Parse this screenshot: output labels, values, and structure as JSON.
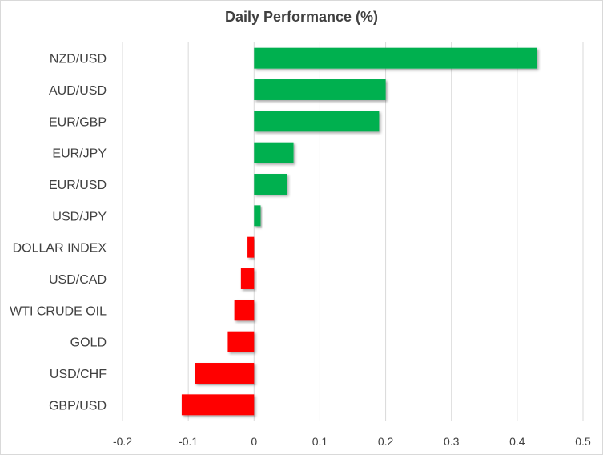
{
  "chart_data": {
    "type": "bar",
    "orientation": "horizontal",
    "title": "Daily Performance (%)",
    "xlabel": "",
    "ylabel": "",
    "categories": [
      "NZD/USD",
      "AUD/USD",
      "EUR/GBP",
      "EUR/JPY",
      "EUR/USD",
      "USD/JPY",
      "DOLLAR INDEX",
      "USD/CAD",
      "WTI CRUDE OIL",
      "GOLD",
      "USD/CHF",
      "GBP/USD"
    ],
    "values": [
      0.43,
      0.2,
      0.19,
      0.06,
      0.05,
      0.01,
      -0.01,
      -0.02,
      -0.03,
      -0.04,
      -0.09,
      -0.11
    ],
    "xlim": [
      -0.2,
      0.5
    ],
    "xticks": [
      -0.2,
      -0.1,
      0,
      0.1,
      0.2,
      0.3,
      0.4,
      0.5
    ],
    "xtick_labels": [
      "-0.2",
      "-0.1",
      "0",
      "0.1",
      "0.2",
      "0.3",
      "0.4",
      "0.5"
    ],
    "grid": "vertical",
    "legend": "none",
    "colors": {
      "positive": "#00b050",
      "negative": "#ff0000",
      "grid": "#d9d9d9",
      "text": "#404040"
    }
  }
}
